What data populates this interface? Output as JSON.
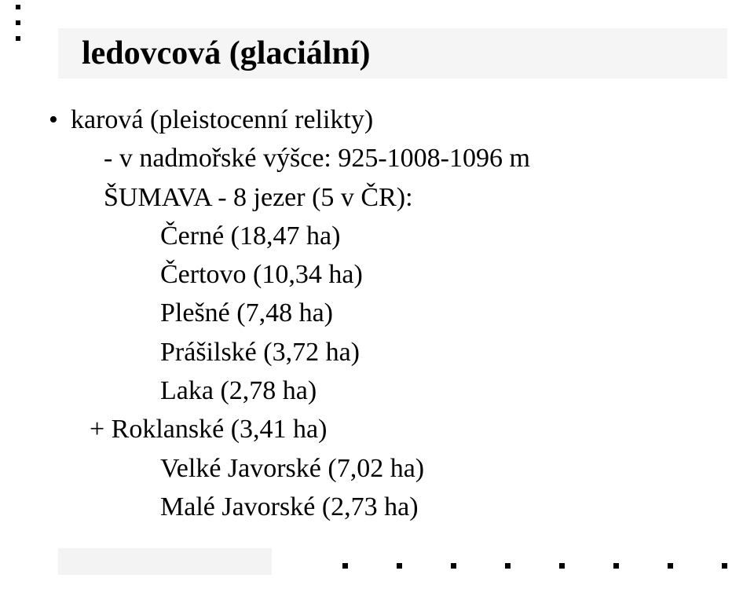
{
  "title": "ledovcová (glaciální)",
  "lines": {
    "l0": "karová (pleistocenní relikty)",
    "l1": "- v nadmořské výšce: 925-1008-1096 m",
    "l2": "ŠUMAVA - 8 jezer (5 v ČR):",
    "l3": "Černé (18,47 ha)",
    "l4": "Čertovo (10,34 ha)",
    "l5": "Plešné (7,48 ha)",
    "l6": "Prášilské (3,72 ha)",
    "l7": "Laka (2,78 ha)",
    "l8": "+ Roklanské (3,41 ha)",
    "l9": "Velké Javorské (7,02 ha)",
    "l10": "Malé Javorské (2,73 ha)"
  },
  "colors": {
    "background": "#ffffff",
    "band": "#f5f5f5",
    "text": "#000000"
  }
}
